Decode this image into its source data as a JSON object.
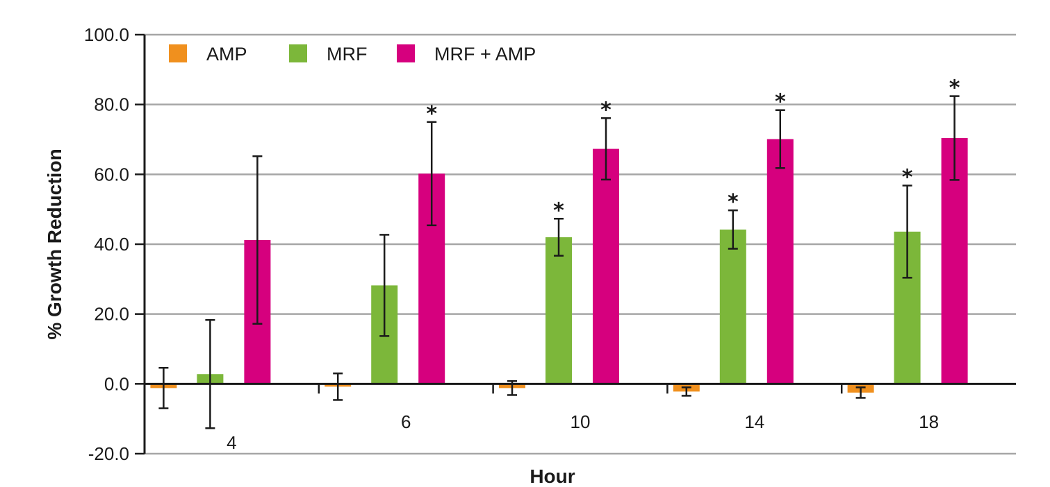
{
  "chart_data": {
    "type": "bar",
    "xlabel": "Hour",
    "ylabel": "% Growth Reduction",
    "ylim": [
      -20,
      100
    ],
    "yticks": [
      -20,
      0,
      20,
      40,
      60,
      80,
      100
    ],
    "ytick_labels": [
      "-20.0",
      "0.0",
      "20.0",
      "40.0",
      "60.0",
      "80.0",
      "100.0"
    ],
    "categories": [
      "4",
      "6",
      "10",
      "14",
      "18"
    ],
    "grid": "horizontal",
    "legend_position": "top-left",
    "series": [
      {
        "name": "AMP",
        "color": "#F0901E",
        "values": [
          -1.2,
          -0.8,
          -1.2,
          -2.2,
          -2.5
        ],
        "error": [
          5.8,
          3.8,
          2.0,
          1.2,
          1.5
        ],
        "significant": [
          false,
          false,
          false,
          false,
          false
        ]
      },
      {
        "name": "MRF",
        "color": "#7CB73A",
        "values": [
          2.8,
          28.2,
          42.0,
          44.2,
          43.6
        ],
        "error": [
          15.5,
          14.5,
          5.3,
          5.5,
          13.2
        ],
        "significant": [
          false,
          false,
          true,
          true,
          true
        ]
      },
      {
        "name": "MRF + AMP",
        "color": "#D6007E",
        "values": [
          41.2,
          60.2,
          67.3,
          70.1,
          70.4
        ],
        "error": [
          24.0,
          14.8,
          8.8,
          8.3,
          12.0
        ],
        "significant": [
          false,
          true,
          true,
          true,
          true
        ]
      }
    ],
    "significance_marker": "*"
  }
}
